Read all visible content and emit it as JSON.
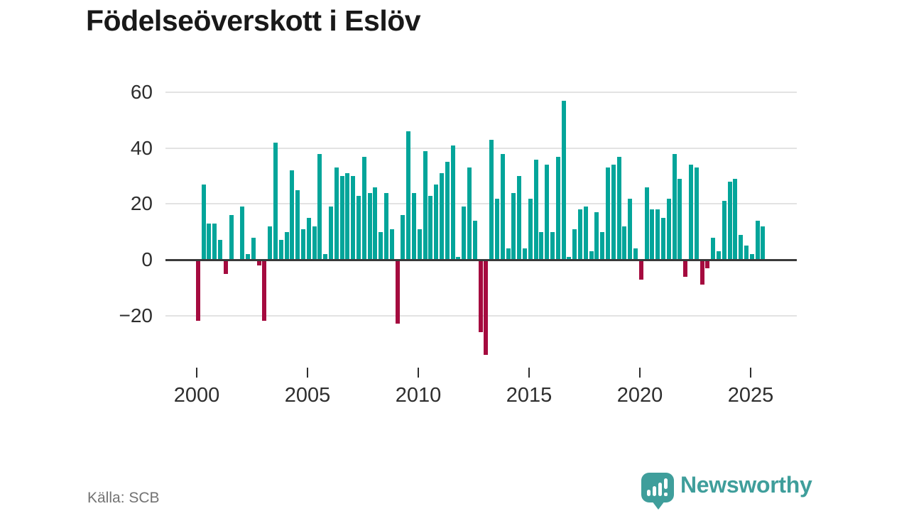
{
  "title": "Födelseöverskott i Eslöv",
  "source": "Källa: SCB",
  "branding": {
    "name": "Newsworthy"
  },
  "colors": {
    "positive": "#03a59a",
    "negative": "#a50b3f",
    "grid": "#e3e3e3",
    "axis": "#3a3a3a",
    "brand": "#3f9e9b",
    "title": "#191919",
    "tick_text": "#2e2e2e",
    "source_text": "#737373"
  },
  "chart_data": {
    "type": "bar",
    "title": "Födelseöverskott i Eslöv",
    "frequency": "quarterly",
    "start": {
      "year": 2000,
      "quarter": 1
    },
    "values": [
      -22,
      27,
      13,
      13,
      7,
      -5,
      16,
      0,
      19,
      2,
      8,
      -2,
      -22,
      12,
      42,
      7,
      10,
      32,
      25,
      11,
      15,
      12,
      38,
      2,
      19,
      33,
      30,
      31,
      30,
      23,
      37,
      24,
      26,
      10,
      24,
      11,
      -23,
      16,
      46,
      24,
      11,
      39,
      23,
      27,
      31,
      35,
      41,
      1,
      19,
      33,
      14,
      -26,
      -34,
      43,
      22,
      38,
      4,
      24,
      30,
      4,
      22,
      36,
      10,
      34,
      10,
      37,
      57,
      1,
      11,
      18,
      19,
      3,
      17,
      10,
      33,
      34,
      37,
      12,
      22,
      4,
      -7,
      26,
      18,
      18,
      15,
      22,
      38,
      29,
      -6,
      34,
      33,
      -9,
      -3,
      8,
      3,
      21,
      28,
      29,
      9,
      5,
      2,
      14,
      12
    ],
    "xticks": [
      "2000",
      "2005",
      "2010",
      "2015",
      "2020",
      "2025"
    ],
    "yticks": [
      "60",
      "40",
      "20",
      "0",
      "−20"
    ],
    "ytick_values": [
      60,
      40,
      20,
      0,
      -20
    ],
    "ylim": [
      -40,
      65
    ],
    "grid": "horizontal",
    "legend": "none"
  }
}
